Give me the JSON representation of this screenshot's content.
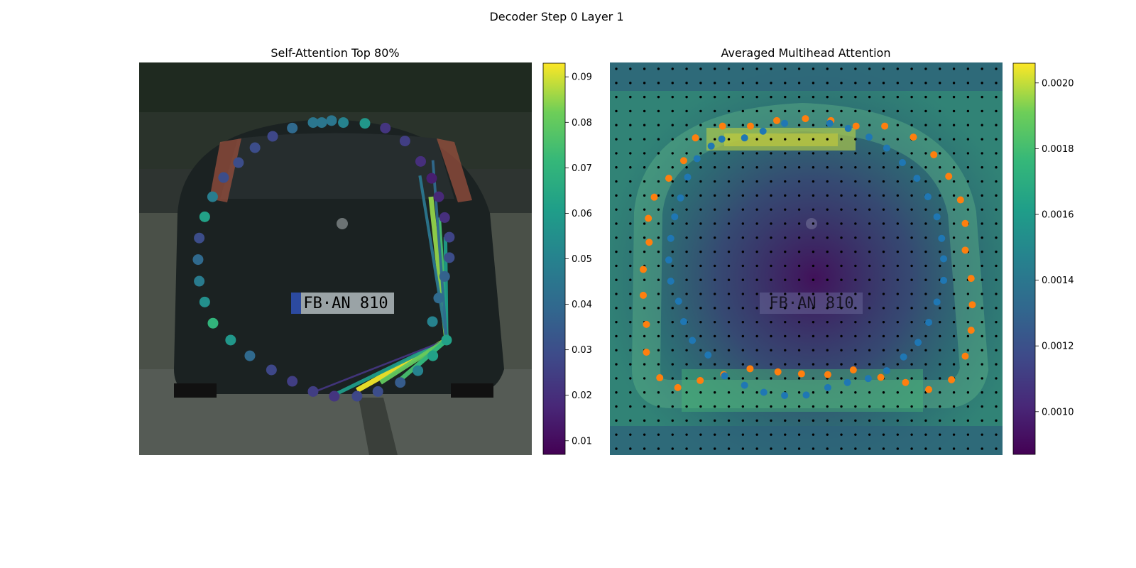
{
  "figure_title": "Decoder Step 0 Layer 1",
  "colors": {
    "orange_points": "#ff7f0e",
    "blue_points": "#1f77b4",
    "grid_dots": "#000000"
  },
  "chart_data": [
    {
      "type": "scatter",
      "title": "Self-Attention Top 80%",
      "background": "photo of the rear of a dark hatchback car on a street",
      "colorbar": {
        "colormap": "viridis",
        "range": [
          0.007,
          0.093
        ],
        "ticks": [
          "0.01",
          "0.02",
          "0.03",
          "0.04",
          "0.05",
          "0.06",
          "0.07",
          "0.08",
          "0.09"
        ]
      },
      "query_point": [
        0.783,
        0.707
      ],
      "points": [
        {
          "x": 0.465,
          "y": 0.153,
          "v": 0.045
        },
        {
          "x": 0.52,
          "y": 0.153,
          "v": 0.05
        },
        {
          "x": 0.575,
          "y": 0.155,
          "v": 0.058
        },
        {
          "x": 0.627,
          "y": 0.167,
          "v": 0.022
        },
        {
          "x": 0.677,
          "y": 0.2,
          "v": 0.025
        },
        {
          "x": 0.717,
          "y": 0.252,
          "v": 0.02
        },
        {
          "x": 0.745,
          "y": 0.295,
          "v": 0.015
        },
        {
          "x": 0.763,
          "y": 0.342,
          "v": 0.018
        },
        {
          "x": 0.778,
          "y": 0.395,
          "v": 0.02
        },
        {
          "x": 0.79,
          "y": 0.445,
          "v": 0.027
        },
        {
          "x": 0.79,
          "y": 0.497,
          "v": 0.03
        },
        {
          "x": 0.778,
          "y": 0.545,
          "v": 0.037
        },
        {
          "x": 0.763,
          "y": 0.6,
          "v": 0.04
        },
        {
          "x": 0.747,
          "y": 0.66,
          "v": 0.05
        },
        {
          "x": 0.783,
          "y": 0.707,
          "v": 0.062
        },
        {
          "x": 0.748,
          "y": 0.747,
          "v": 0.062
        },
        {
          "x": 0.71,
          "y": 0.785,
          "v": 0.05
        },
        {
          "x": 0.665,
          "y": 0.815,
          "v": 0.035
        },
        {
          "x": 0.608,
          "y": 0.838,
          "v": 0.03
        },
        {
          "x": 0.555,
          "y": 0.85,
          "v": 0.028
        },
        {
          "x": 0.497,
          "y": 0.85,
          "v": 0.022
        },
        {
          "x": 0.443,
          "y": 0.838,
          "v": 0.025
        },
        {
          "x": 0.39,
          "y": 0.812,
          "v": 0.025
        },
        {
          "x": 0.337,
          "y": 0.783,
          "v": 0.028
        },
        {
          "x": 0.282,
          "y": 0.747,
          "v": 0.04
        },
        {
          "x": 0.233,
          "y": 0.707,
          "v": 0.058
        },
        {
          "x": 0.188,
          "y": 0.664,
          "v": 0.07
        },
        {
          "x": 0.167,
          "y": 0.61,
          "v": 0.055
        },
        {
          "x": 0.153,
          "y": 0.557,
          "v": 0.047
        },
        {
          "x": 0.15,
          "y": 0.502,
          "v": 0.04
        },
        {
          "x": 0.153,
          "y": 0.447,
          "v": 0.03
        },
        {
          "x": 0.167,
          "y": 0.393,
          "v": 0.062
        },
        {
          "x": 0.187,
          "y": 0.342,
          "v": 0.048
        },
        {
          "x": 0.215,
          "y": 0.293,
          "v": 0.03
        },
        {
          "x": 0.253,
          "y": 0.255,
          "v": 0.03
        },
        {
          "x": 0.295,
          "y": 0.217,
          "v": 0.03
        },
        {
          "x": 0.34,
          "y": 0.188,
          "v": 0.028
        },
        {
          "x": 0.39,
          "y": 0.167,
          "v": 0.04
        },
        {
          "x": 0.443,
          "y": 0.153,
          "v": 0.045
        },
        {
          "x": 0.49,
          "y": 0.148,
          "v": 0.045
        }
      ],
      "attention_lines": [
        {
          "to": [
            0.743,
            0.342
          ],
          "v": 0.085
        },
        {
          "to": [
            0.763,
            0.395
          ],
          "v": 0.075
        },
        {
          "to": [
            0.78,
            0.445
          ],
          "v": 0.06
        },
        {
          "to": [
            0.715,
            0.288
          ],
          "v": 0.045
        },
        {
          "to": [
            0.748,
            0.249
          ],
          "v": 0.04
        },
        {
          "to": [
            0.555,
            0.835
          ],
          "v": 0.092
        },
        {
          "to": [
            0.5,
            0.845
          ],
          "v": 0.06
        },
        {
          "to": [
            0.443,
            0.84
          ],
          "v": 0.022
        },
        {
          "to": [
            0.615,
            0.815
          ],
          "v": 0.08
        },
        {
          "to": [
            0.665,
            0.808
          ],
          "v": 0.075
        },
        {
          "to": [
            0.7,
            0.78
          ],
          "v": 0.07
        }
      ]
    },
    {
      "type": "heatmap",
      "title": "Averaged Multihead Attention",
      "background": "faded photo of the rear of a dark hatchback car overlaid with attention heatmap",
      "colorbar": {
        "colormap": "viridis",
        "range": [
          0.00087,
          0.00206
        ],
        "ticks": [
          "0.0010",
          "0.0012",
          "0.0014",
          "0.0016",
          "0.0018",
          "0.0020"
        ]
      },
      "grid_dots": {
        "rows": 28,
        "cols": 28
      },
      "orange_points": [
        [
          0.287,
          0.162
        ],
        [
          0.358,
          0.162
        ],
        [
          0.425,
          0.148
        ],
        [
          0.498,
          0.143
        ],
        [
          0.563,
          0.148
        ],
        [
          0.627,
          0.162
        ],
        [
          0.7,
          0.162
        ],
        [
          0.773,
          0.19
        ],
        [
          0.825,
          0.235
        ],
        [
          0.863,
          0.29
        ],
        [
          0.893,
          0.35
        ],
        [
          0.905,
          0.41
        ],
        [
          0.905,
          0.478
        ],
        [
          0.92,
          0.55
        ],
        [
          0.923,
          0.617
        ],
        [
          0.92,
          0.682
        ],
        [
          0.905,
          0.748
        ],
        [
          0.87,
          0.808
        ],
        [
          0.812,
          0.833
        ],
        [
          0.753,
          0.815
        ],
        [
          0.69,
          0.802
        ],
        [
          0.62,
          0.783
        ],
        [
          0.555,
          0.795
        ],
        [
          0.488,
          0.793
        ],
        [
          0.428,
          0.788
        ],
        [
          0.357,
          0.78
        ],
        [
          0.29,
          0.795
        ],
        [
          0.23,
          0.81
        ],
        [
          0.173,
          0.828
        ],
        [
          0.127,
          0.803
        ],
        [
          0.093,
          0.738
        ],
        [
          0.093,
          0.667
        ],
        [
          0.085,
          0.593
        ],
        [
          0.085,
          0.527
        ],
        [
          0.1,
          0.458
        ],
        [
          0.098,
          0.397
        ],
        [
          0.113,
          0.343
        ],
        [
          0.15,
          0.295
        ],
        [
          0.188,
          0.25
        ],
        [
          0.218,
          0.192
        ]
      ],
      "blue_points": [
        [
          0.343,
          0.192
        ],
        [
          0.39,
          0.175
        ],
        [
          0.445,
          0.155
        ],
        [
          0.56,
          0.155
        ],
        [
          0.607,
          0.168
        ],
        [
          0.66,
          0.19
        ],
        [
          0.705,
          0.218
        ],
        [
          0.745,
          0.255
        ],
        [
          0.782,
          0.295
        ],
        [
          0.81,
          0.342
        ],
        [
          0.833,
          0.393
        ],
        [
          0.845,
          0.448
        ],
        [
          0.85,
          0.5
        ],
        [
          0.85,
          0.555
        ],
        [
          0.833,
          0.61
        ],
        [
          0.812,
          0.662
        ],
        [
          0.785,
          0.713
        ],
        [
          0.748,
          0.75
        ],
        [
          0.705,
          0.785
        ],
        [
          0.658,
          0.805
        ],
        [
          0.605,
          0.815
        ],
        [
          0.555,
          0.828
        ],
        [
          0.5,
          0.847
        ],
        [
          0.445,
          0.848
        ],
        [
          0.392,
          0.84
        ],
        [
          0.343,
          0.822
        ],
        [
          0.292,
          0.798
        ],
        [
          0.25,
          0.745
        ],
        [
          0.21,
          0.708
        ],
        [
          0.188,
          0.66
        ],
        [
          0.175,
          0.608
        ],
        [
          0.155,
          0.557
        ],
        [
          0.15,
          0.503
        ],
        [
          0.155,
          0.448
        ],
        [
          0.165,
          0.393
        ],
        [
          0.18,
          0.345
        ],
        [
          0.198,
          0.292
        ],
        [
          0.222,
          0.245
        ],
        [
          0.258,
          0.213
        ],
        [
          0.285,
          0.195
        ]
      ]
    }
  ]
}
